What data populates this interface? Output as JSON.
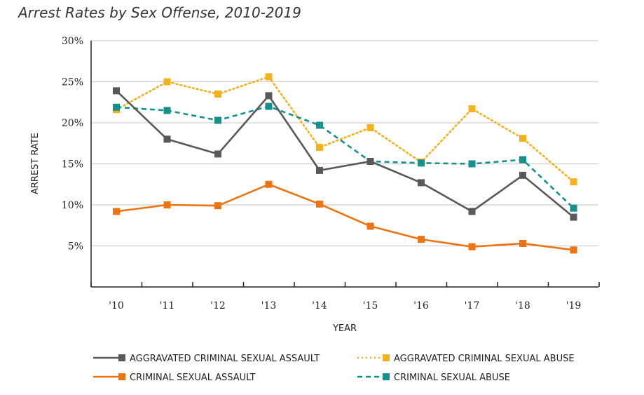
{
  "title": "Arrest Rates by Sex Offense, 2010-2019",
  "chart_data": {
    "type": "line",
    "title": "Arrest Rates by Sex Offense, 2010-2019",
    "xlabel": "YEAR",
    "ylabel": "ARREST RATE",
    "categories": [
      "'10",
      "'11",
      "'12",
      "'13",
      "'14",
      "'15",
      "'16",
      "'17",
      "'18",
      "'19"
    ],
    "yticks": [
      "5%",
      "10%",
      "15%",
      "20%",
      "25%",
      "30%"
    ],
    "ylim": [
      0,
      30
    ],
    "grid": true,
    "legend_position": "bottom",
    "series": [
      {
        "name": "AGGRAVATED CRIMINAL SEXUAL ASSAULT",
        "color": "#595959",
        "style": "solid",
        "values": [
          23.9,
          18.0,
          16.2,
          23.3,
          14.2,
          15.3,
          12.7,
          9.2,
          13.6,
          8.5
        ]
      },
      {
        "name": "AGGRAVATED CRIMINAL SEXUAL ABUSE",
        "color": "#F5B11A",
        "style": "dotted",
        "values": [
          21.6,
          25.0,
          23.5,
          25.6,
          17.0,
          19.4,
          15.2,
          21.7,
          18.1,
          12.8
        ]
      },
      {
        "name": "CRIMINAL SEXUAL ASSAULT",
        "color": "#EE7411",
        "style": "solid",
        "values": [
          9.2,
          10.0,
          9.9,
          12.5,
          10.1,
          7.4,
          5.8,
          4.9,
          5.3,
          4.5
        ]
      },
      {
        "name": "CRIMINAL SEXUAL ABUSE",
        "color": "#14918A",
        "style": "dashed",
        "values": [
          21.9,
          21.5,
          20.3,
          22.0,
          19.7,
          15.3,
          15.1,
          15.0,
          15.5,
          9.6
        ]
      }
    ]
  }
}
